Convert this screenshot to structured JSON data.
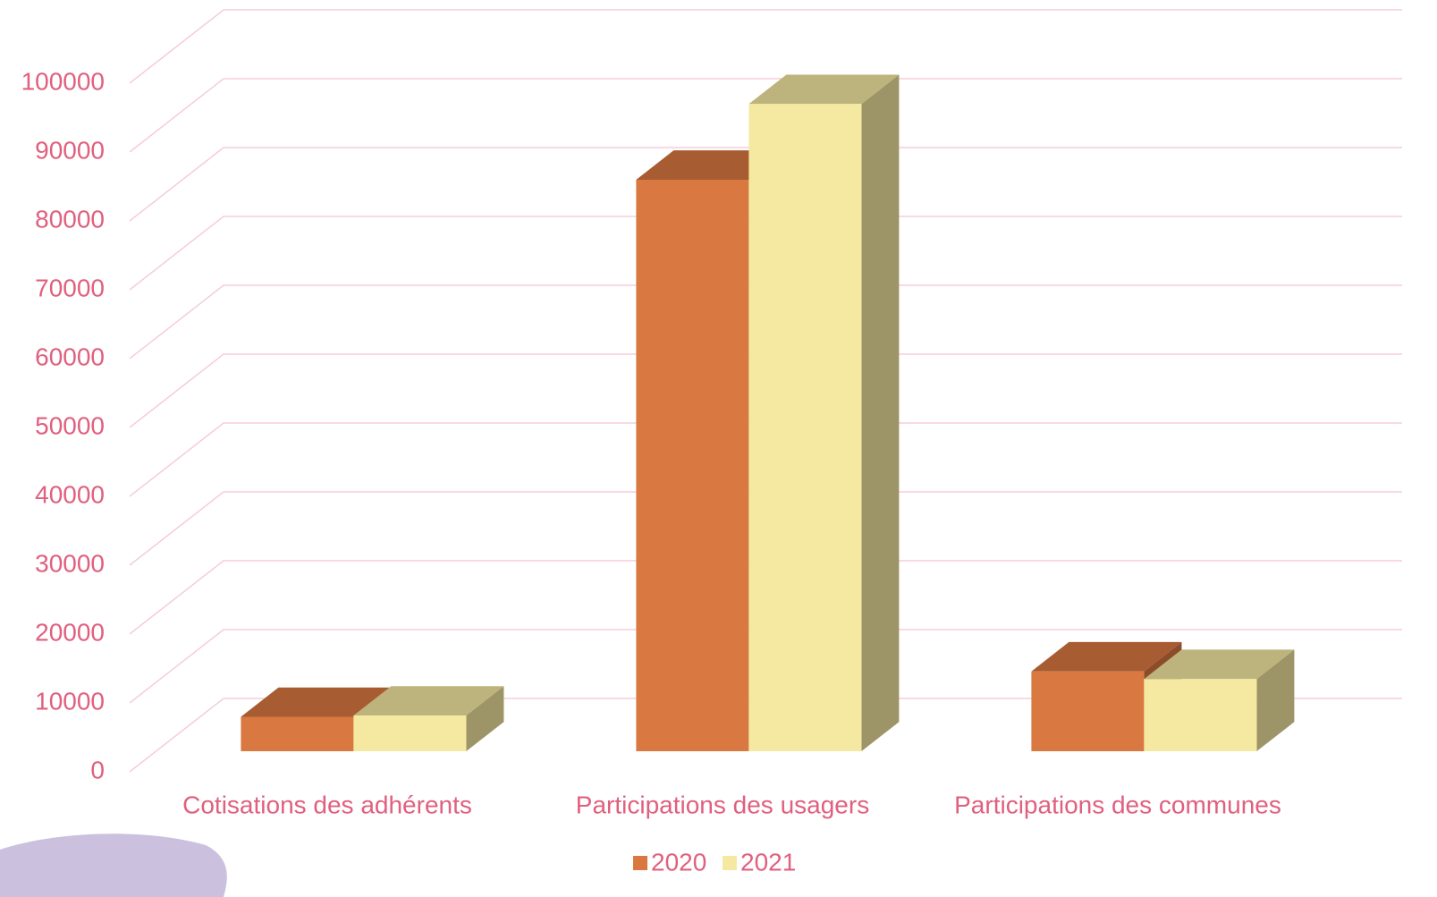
{
  "chart_data": {
    "type": "bar3d",
    "categories": [
      "Cotisations des adhérents",
      "Participations des usagers",
      "Participations des communes"
    ],
    "series": [
      {
        "name": "2020",
        "color": "#d97840",
        "values": [
          5000,
          83000,
          11600
        ]
      },
      {
        "name": "2021",
        "color": "#f5e9a1",
        "values": [
          5200,
          94000,
          10500
        ]
      }
    ],
    "ylim": [
      0,
      100000
    ],
    "yticks": [
      0,
      10000,
      20000,
      30000,
      40000,
      50000,
      60000,
      70000,
      80000,
      90000,
      100000
    ],
    "grid": true,
    "legend": "bottom"
  }
}
